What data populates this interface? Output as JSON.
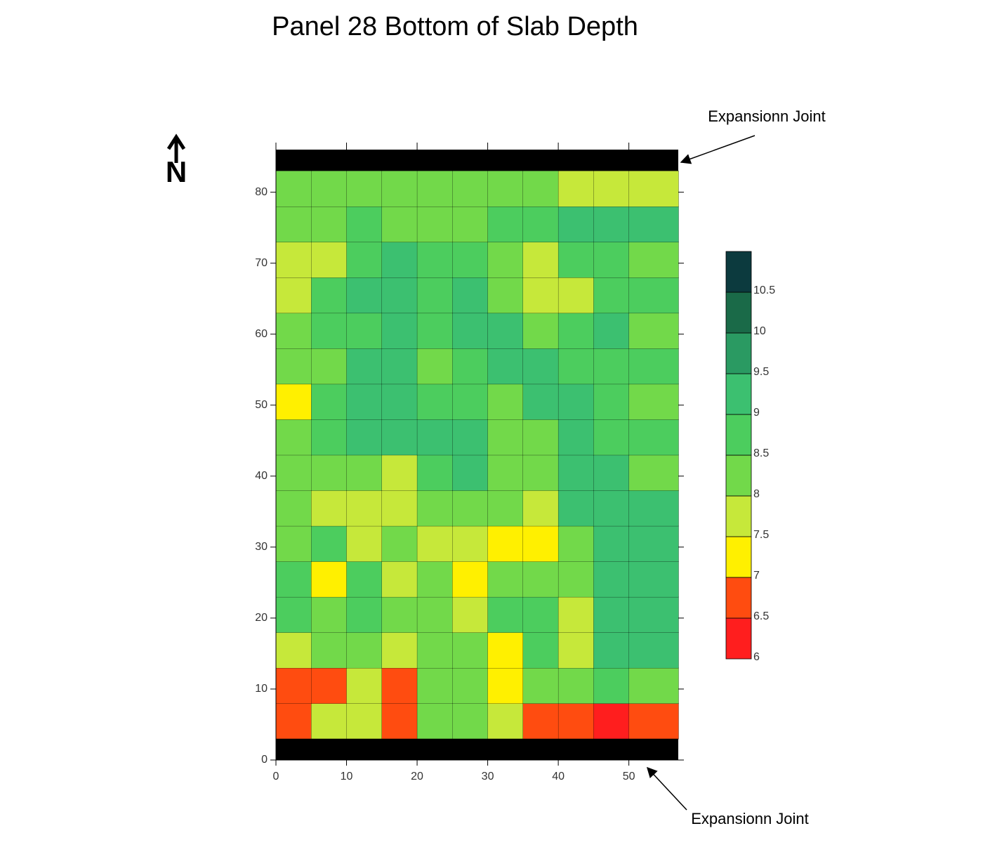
{
  "chart_data": {
    "type": "contour",
    "title": "Panel 28 Bottom of Slab Depth",
    "annotations": [
      "Expansionn Joint",
      "Expansionn Joint"
    ],
    "north_label": "N",
    "xlim": [
      0,
      57
    ],
    "ylim": [
      0,
      86
    ],
    "xticks": [
      0,
      10,
      20,
      30,
      40,
      50
    ],
    "yticks": [
      0,
      10,
      20,
      30,
      40,
      50,
      60,
      70,
      80
    ],
    "x_bins": [
      0,
      5,
      10,
      15,
      20,
      25,
      30,
      35,
      40,
      45,
      50,
      57
    ],
    "y_bins": [
      3,
      8,
      13,
      18,
      23,
      28,
      33,
      38,
      43,
      48,
      53,
      58,
      63,
      68,
      73,
      78,
      83
    ],
    "z": [
      [
        6.8,
        7.8,
        7.6,
        6.8,
        8.2,
        8.3,
        7.8,
        6.8,
        6.8,
        6.2,
        6.8
      ],
      [
        6.8,
        6.9,
        7.8,
        6.9,
        8.3,
        8.2,
        7.4,
        8,
        8.4,
        8.6,
        8.4
      ],
      [
        7.8,
        8.2,
        8.4,
        7.8,
        8.2,
        8,
        7.3,
        8.6,
        7.8,
        9,
        9
      ],
      [
        8.6,
        8,
        8.8,
        8.2,
        8.3,
        7.8,
        8.7,
        8.8,
        7.8,
        9,
        9
      ],
      [
        8.8,
        7.4,
        8.5,
        7.8,
        8.1,
        7.3,
        8.2,
        8.4,
        8,
        9,
        9
      ],
      [
        8,
        8.6,
        7.8,
        8,
        7.8,
        7.6,
        7.2,
        7.2,
        8.4,
        9,
        9
      ],
      [
        8,
        7.8,
        7.7,
        7.8,
        8,
        8.2,
        8.3,
        7.6,
        9,
        9,
        9
      ],
      [
        8.2,
        8.2,
        8.1,
        7.8,
        8.6,
        9,
        8.2,
        8.4,
        9,
        9,
        8.4
      ],
      [
        8.2,
        8.6,
        9,
        9,
        9,
        9,
        8.2,
        8.3,
        9,
        8.5,
        8.5
      ],
      [
        7.4,
        8.5,
        9,
        9,
        8.7,
        8.5,
        8.4,
        9,
        9,
        8.8,
        8.4
      ],
      [
        8.2,
        8.4,
        9,
        9,
        8.4,
        8.5,
        9,
        9,
        8.8,
        8.5,
        8.6
      ],
      [
        8.4,
        8.6,
        8.8,
        9,
        8.5,
        9,
        9,
        8.3,
        8.6,
        9,
        8
      ],
      [
        7.9,
        8.5,
        9,
        9,
        8.7,
        9,
        8.4,
        7.8,
        7.6,
        8.6,
        8.5
      ],
      [
        7.8,
        7.8,
        8.5,
        9,
        8.5,
        8.6,
        8.4,
        7.7,
        8.5,
        8.7,
        8.4
      ],
      [
        8.3,
        8.4,
        8.5,
        8.4,
        8.2,
        8.4,
        8.5,
        8.6,
        9,
        9,
        9
      ],
      [
        8.4,
        8.2,
        8.3,
        8.4,
        8.3,
        8.3,
        8.2,
        8.2,
        7.9,
        7.8,
        7.6
      ]
    ],
    "levels": [
      6,
      6.5,
      7,
      7.5,
      8,
      8.5,
      9,
      9.5,
      10,
      10.5,
      11
    ],
    "colors": [
      "#ff1e1e",
      "#ff4c10",
      "#fff000",
      "#c6e83a",
      "#72d94a",
      "#4ccd5e",
      "#3cc070",
      "#2a9a62",
      "#1a6a48",
      "#0c3a3e"
    ],
    "colorbar_ticks": [
      6,
      6.5,
      7,
      7.5,
      8,
      8.5,
      9,
      9.5,
      10,
      10.5
    ]
  }
}
